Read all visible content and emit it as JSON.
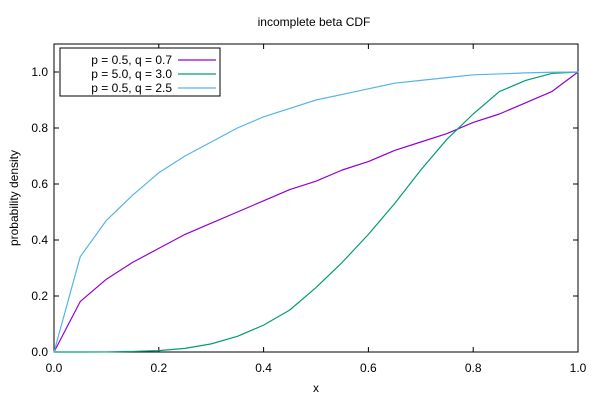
{
  "chart_data": {
    "type": "line",
    "title": "incomplete beta CDF",
    "xlabel": "x",
    "ylabel": "probability density",
    "xlim": [
      0.0,
      1.0
    ],
    "ylim": [
      0.0,
      1.1
    ],
    "x_ticks": [
      "0.0",
      "0.2",
      "0.4",
      "0.6",
      "0.8",
      "1.0"
    ],
    "y_ticks": [
      "0.0",
      "0.2",
      "0.4",
      "0.6",
      "0.8",
      "1.0"
    ],
    "grid": false,
    "legend_position": "top-left",
    "x": [
      0.0,
      0.05,
      0.1,
      0.15,
      0.2,
      0.25,
      0.3,
      0.35,
      0.4,
      0.45,
      0.5,
      0.55,
      0.6,
      0.65,
      0.7,
      0.75,
      0.8,
      0.85,
      0.9,
      0.95,
      1.0
    ],
    "series": [
      {
        "name": "p = 0.5, q = 0.7",
        "color": "#9400d3",
        "values": [
          0.0,
          0.18,
          0.26,
          0.32,
          0.37,
          0.42,
          0.46,
          0.5,
          0.54,
          0.58,
          0.61,
          0.65,
          0.68,
          0.72,
          0.75,
          0.78,
          0.82,
          0.85,
          0.89,
          0.93,
          1.0
        ]
      },
      {
        "name": "p = 5.0, q = 3.0",
        "color": "#009e73",
        "values": [
          0.0,
          0.0,
          0.0003,
          0.002,
          0.005,
          0.013,
          0.029,
          0.056,
          0.096,
          0.15,
          0.23,
          0.32,
          0.42,
          0.53,
          0.65,
          0.76,
          0.85,
          0.93,
          0.97,
          0.995,
          1.0
        ]
      },
      {
        "name": "p = 0.5, q = 2.5",
        "color": "#56b4e9",
        "values": [
          0.0,
          0.34,
          0.47,
          0.56,
          0.64,
          0.7,
          0.75,
          0.8,
          0.84,
          0.87,
          0.9,
          0.92,
          0.94,
          0.96,
          0.97,
          0.98,
          0.99,
          0.993,
          0.997,
          0.999,
          1.0
        ]
      }
    ]
  }
}
